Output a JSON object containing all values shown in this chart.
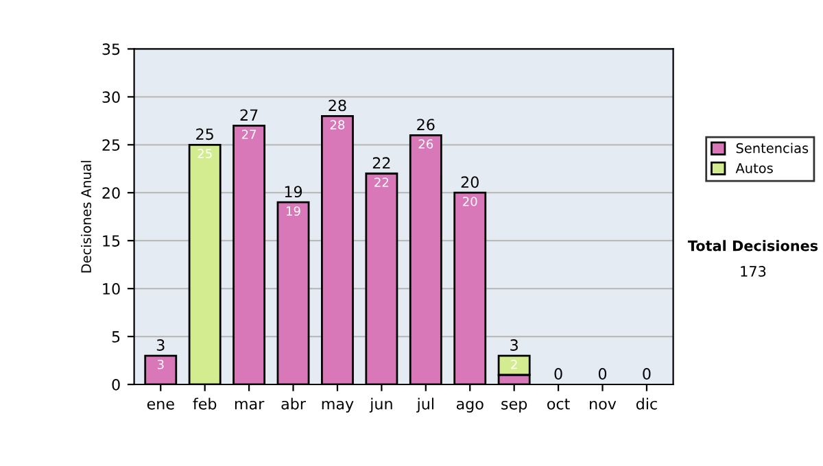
{
  "chart_data": {
    "type": "bar",
    "stacked": true,
    "ylabel": "Decisiones Anual",
    "categories": [
      "ene",
      "feb",
      "mar",
      "abr",
      "may",
      "jun",
      "jul",
      "ago",
      "sep",
      "oct",
      "nov",
      "dic"
    ],
    "series": [
      {
        "name": "Sentencias",
        "color": "#d878b8",
        "values": [
          3,
          null,
          27,
          19,
          28,
          22,
          26,
          20,
          1,
          null,
          null,
          null
        ],
        "value_labels": [
          "3",
          null,
          "27",
          "19",
          "28",
          "22",
          "26",
          "20",
          null,
          null,
          null,
          null
        ]
      },
      {
        "name": "Autos",
        "color": "#d4ec90",
        "values": [
          null,
          25,
          null,
          null,
          null,
          null,
          null,
          null,
          2,
          null,
          null,
          null
        ],
        "value_labels": [
          null,
          "25",
          null,
          null,
          null,
          null,
          null,
          null,
          "2",
          null,
          null,
          null
        ]
      }
    ],
    "totals": [
      "3",
      "25",
      "27",
      "19",
      "28",
      "22",
      "26",
      "20",
      "3",
      "0",
      "0",
      "0"
    ],
    "ylim": [
      0,
      35
    ],
    "yticks": [
      0,
      5,
      10,
      15,
      20,
      25,
      30,
      35
    ],
    "grid": "y",
    "legend": "right",
    "annotations": [
      "Total Decisiones",
      "173"
    ]
  }
}
